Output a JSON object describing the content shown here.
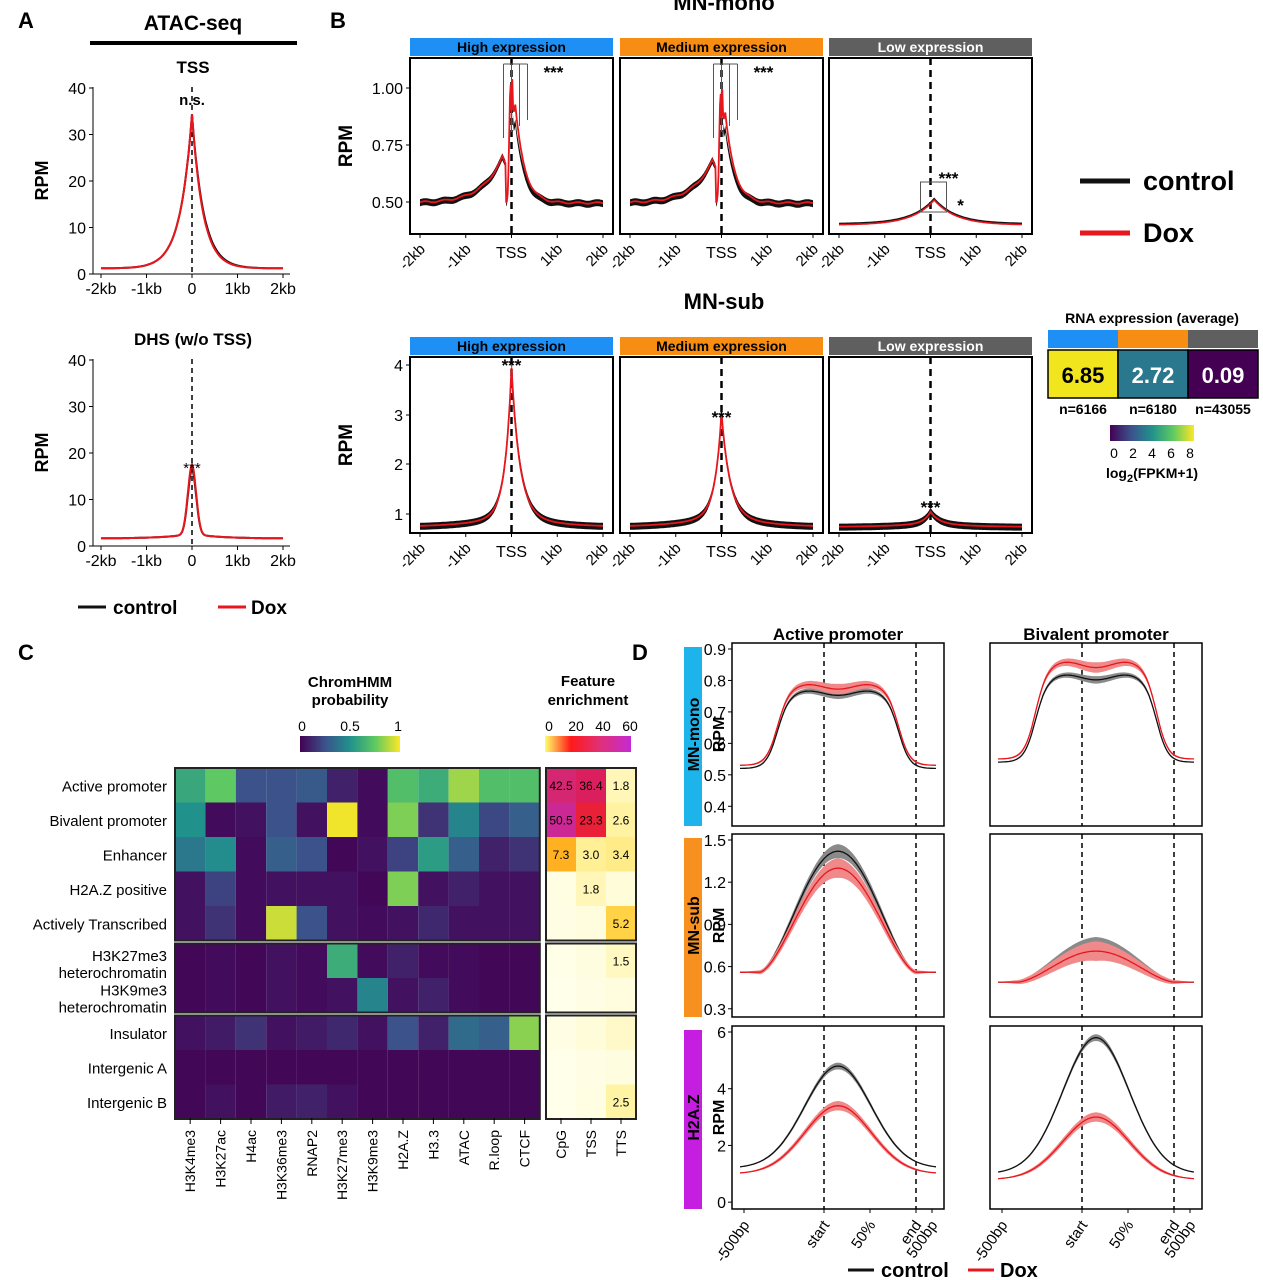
{
  "panel_labels": {
    "a": "A",
    "b": "B",
    "c": "C",
    "d": "D"
  },
  "legend": {
    "control": "control",
    "dox": "Dox"
  },
  "colors": {
    "control": "#111111",
    "dox": "#e8161d",
    "dox_ribbon": "#f08a8a",
    "control_ribbon": "#8a8a8a",
    "high": "#1e90f5",
    "medium": "#f78d12",
    "low": "#5f5f5f",
    "mn_mono": "#1cb4ea",
    "mn_sub": "#f7901e",
    "h2az": "#c61ee0"
  },
  "panel_a": {
    "title": "ATAC-seq",
    "ylabel": "RPM",
    "plots": [
      {
        "title": "TSS",
        "annotation": "n.s."
      },
      {
        "title": "DHS (w/o TSS)",
        "annotation": "***"
      }
    ]
  },
  "panel_b": {
    "ylabel": "RPM",
    "legend": {
      "control": "control",
      "dox": "Dox"
    },
    "groups": [
      {
        "title": "MN-mono",
        "strips": [
          "High expression",
          "Medium expression",
          "Low expression"
        ],
        "annotations": [
          "***",
          "***",
          "***",
          "*"
        ]
      },
      {
        "title": "MN-sub",
        "strips": [
          "High expression",
          "Medium expression",
          "Low expression"
        ],
        "annotations": [
          "***",
          "***",
          "***"
        ]
      }
    ],
    "rna": {
      "title": "RNA expression (average)",
      "cells": [
        {
          "value": "6.85",
          "n": "n=6166"
        },
        {
          "value": "2.72",
          "n": "n=6180"
        },
        {
          "value": "0.09",
          "n": "n=43055"
        }
      ],
      "scale_ticks": [
        "0",
        "2",
        "4",
        "6",
        "8"
      ],
      "scale_label": "log",
      "scale_label_sub": "2",
      "scale_label_tail": "(FPKM+1)"
    }
  },
  "panel_c": {
    "chromhmm_title_1": "ChromHMM",
    "chromhmm_title_2": "probability",
    "chromhmm_ticks": [
      "0",
      "0.5",
      "1"
    ],
    "feature_title_1": "Feature",
    "feature_title_2": "enrichment",
    "feature_ticks": [
      "0",
      "20",
      "40",
      "60"
    ],
    "states": [
      [
        "Active promoter"
      ],
      [
        "Bivalent promoter"
      ],
      [
        "Enhancer"
      ],
      [
        "H2A.Z positive"
      ],
      [
        "Actively Transcribed"
      ],
      [
        "H3K27me3",
        "heterochromatin"
      ],
      [
        "H3K9me3",
        "heterochromatin"
      ],
      [
        "Insulator"
      ],
      [
        "Intergenic A"
      ],
      [
        "Intergenic B"
      ]
    ],
    "marks": [
      "H3K4me3",
      "H3K27ac",
      "H4ac",
      "H3K36me3",
      "RNAP2",
      "H3K27me3",
      "H3K9me3",
      "H2A.Z",
      "H3.3",
      "ATAC",
      "R.loop",
      "CTCF"
    ],
    "features": [
      "CpG",
      "TSS",
      "TTS"
    ],
    "feature_labels": [
      [
        "42.5",
        "36.4",
        "1.8"
      ],
      [
        "50.5",
        "23.3",
        "2.6"
      ],
      [
        "7.3",
        "3.0",
        "3.4"
      ],
      [
        "",
        "1.8",
        ""
      ],
      [
        "",
        "",
        "5.2"
      ],
      [
        "",
        "",
        "1.5"
      ],
      [
        "",
        "",
        ""
      ],
      [
        "",
        "",
        ""
      ],
      [
        "",
        "",
        ""
      ],
      [
        "",
        "",
        "2.5"
      ]
    ]
  },
  "panel_d": {
    "columns": [
      "Active promoter",
      "Bivalent promoter"
    ],
    "rows": [
      "MN-mono",
      "MN-sub",
      "H2A.Z"
    ],
    "ylabel": "RPM",
    "xticks": [
      "-500bp",
      "start",
      "50%",
      "end",
      "500bp"
    ],
    "yticks": [
      [
        "0.9",
        "0.8",
        "0.7",
        "0.6",
        "0.5",
        "0.4"
      ],
      [
        "1.5",
        "1.2",
        "0.9",
        "0.6",
        "0.3"
      ],
      [
        "6",
        "4",
        "2",
        "0"
      ]
    ],
    "legend": {
      "control": "control",
      "dox": "Dox"
    }
  },
  "axis_labels": {
    "tss_ticks_a": [
      "-2kb",
      "-1kb",
      "0",
      "1kb",
      "2kb"
    ],
    "tss_ticks_b": [
      "-2kb",
      "-1kb",
      "TSS",
      "1kb",
      "2kb"
    ],
    "a_yticks": [
      "40",
      "30",
      "20",
      "10",
      "0"
    ],
    "b_yticks_mono": [
      "1.00",
      "0.75",
      "0.50"
    ],
    "b_yticks_sub": [
      "4",
      "3",
      "2",
      "1"
    ]
  },
  "chart_data": [
    {
      "type": "line",
      "panel": "A",
      "title": "TSS",
      "ylabel": "RPM",
      "xlim": [
        "-2kb",
        "2kb"
      ],
      "ylim": [
        0,
        40
      ],
      "x": [
        -2000,
        -1000,
        -500,
        -200,
        0,
        200,
        500,
        1000,
        2000
      ],
      "series": [
        {
          "name": "control",
          "values": [
            1.5,
            3,
            8,
            20,
            34,
            18,
            7,
            3,
            1.5
          ]
        },
        {
          "name": "Dox",
          "values": [
            1.5,
            3,
            8,
            20,
            34,
            17,
            6.5,
            3,
            1.5
          ]
        }
      ]
    },
    {
      "type": "line",
      "panel": "A",
      "title": "DHS (w/o TSS)",
      "ylabel": "RPM",
      "xlim": [
        "-2kb",
        "2kb"
      ],
      "ylim": [
        0,
        40
      ],
      "x": [
        -2000,
        -1000,
        -300,
        -100,
        0,
        100,
        300,
        1000,
        2000
      ],
      "series": [
        {
          "name": "control",
          "values": [
            1.5,
            1.8,
            2.5,
            9,
            15.5,
            9,
            2.5,
            1.8,
            1.5
          ]
        },
        {
          "name": "Dox",
          "values": [
            1.5,
            1.8,
            2.5,
            9,
            16.5,
            9,
            2.5,
            1.8,
            1.5
          ]
        }
      ]
    },
    {
      "type": "line",
      "panel": "B",
      "title": "MN-mono",
      "ylabel": "RPM",
      "ylim": [
        0.3,
        1.15
      ],
      "facets": [
        "High expression",
        "Medium expression",
        "Low expression"
      ],
      "series": [
        {
          "name": "control",
          "peaks": [
            0.95,
            0.88,
            0.56
          ]
        },
        {
          "name": "Dox",
          "peaks": [
            1.07,
            1.0,
            0.55
          ]
        }
      ]
    },
    {
      "type": "line",
      "panel": "B",
      "title": "MN-sub",
      "ylabel": "RPM",
      "ylim": [
        0.5,
        4.2
      ],
      "facets": [
        "High expression",
        "Medium expression",
        "Low expression"
      ],
      "series": [
        {
          "name": "control",
          "peaks": [
            4.0,
            2.7,
            0.72
          ]
        },
        {
          "name": "Dox",
          "peaks": [
            3.8,
            2.6,
            0.7
          ]
        }
      ]
    },
    {
      "type": "heatmap",
      "panel": "C",
      "title": "ChromHMM probability",
      "range": [
        0,
        1
      ],
      "rows": [
        "Active promoter",
        "Bivalent promoter",
        "Enhancer",
        "H2A.Z positive",
        "Actively Transcribed",
        "H3K27me3 heterochromatin",
        "H3K9me3 heterochromatin",
        "Insulator",
        "Intergenic A",
        "Intergenic B"
      ],
      "columns": [
        "H3K4me3",
        "H3K27ac",
        "H4ac",
        "H3K36me3",
        "RNAP2",
        "H3K27me3",
        "H3K9me3",
        "H2A.Z",
        "H3.3",
        "ATAC",
        "R.loop",
        "CTCF"
      ],
      "values": [
        [
          0.6,
          0.75,
          0.25,
          0.25,
          0.28,
          0.1,
          0.03,
          0.7,
          0.62,
          0.85,
          0.7,
          0.7
        ],
        [
          0.5,
          0.03,
          0.05,
          0.25,
          0.05,
          0.98,
          0.03,
          0.8,
          0.15,
          0.45,
          0.22,
          0.3
        ],
        [
          0.4,
          0.48,
          0.03,
          0.3,
          0.25,
          0.02,
          0.05,
          0.2,
          0.55,
          0.3,
          0.1,
          0.15
        ],
        [
          0.05,
          0.2,
          0.03,
          0.05,
          0.05,
          0.05,
          0.02,
          0.8,
          0.05,
          0.1,
          0.05,
          0.05
        ],
        [
          0.05,
          0.15,
          0.03,
          0.92,
          0.25,
          0.05,
          0.03,
          0.05,
          0.12,
          0.05,
          0.05,
          0.05
        ],
        [
          0.02,
          0.03,
          0.02,
          0.05,
          0.03,
          0.62,
          0.03,
          0.1,
          0.03,
          0.03,
          0.02,
          0.02
        ],
        [
          0.02,
          0.03,
          0.02,
          0.05,
          0.03,
          0.05,
          0.45,
          0.05,
          0.1,
          0.03,
          0.02,
          0.02
        ],
        [
          0.05,
          0.08,
          0.15,
          0.05,
          0.08,
          0.12,
          0.05,
          0.25,
          0.1,
          0.35,
          0.3,
          0.82
        ],
        [
          0.02,
          0.02,
          0.02,
          0.02,
          0.02,
          0.02,
          0.02,
          0.02,
          0.02,
          0.02,
          0.02,
          0.02
        ],
        [
          0.02,
          0.05,
          0.02,
          0.08,
          0.1,
          0.05,
          0.02,
          0.02,
          0.02,
          0.02,
          0.02,
          0.02
        ]
      ]
    },
    {
      "type": "heatmap",
      "panel": "C",
      "title": "Feature enrichment",
      "range": [
        0,
        60
      ],
      "columns": [
        "CpG",
        "TSS",
        "TTS"
      ],
      "values": [
        [
          42.5,
          36.4,
          1.8
        ],
        [
          50.5,
          23.3,
          2.6
        ],
        [
          7.3,
          3.0,
          3.4
        ],
        [
          0.3,
          1.8,
          0.6
        ],
        [
          0.2,
          0.5,
          5.2
        ],
        [
          0.1,
          0.4,
          1.5
        ],
        [
          0.05,
          0.2,
          0.5
        ],
        [
          0.2,
          0.6,
          1.2
        ],
        [
          0.05,
          0.2,
          0.4
        ],
        [
          0.05,
          0.3,
          2.5
        ]
      ]
    },
    {
      "type": "line",
      "panel": "D",
      "ylabel": "RPM",
      "x": [
        "-500bp",
        "start",
        "50%",
        "end",
        "500bp"
      ],
      "facets": [
        {
          "row": "MN-mono",
          "column": "Active promoter",
          "ylim": [
            0.35,
            0.9
          ],
          "series": [
            {
              "name": "control",
              "values": [
                0.52,
                0.6,
                0.76,
                0.6,
                0.52
              ]
            },
            {
              "name": "Dox",
              "values": [
                0.53,
                0.61,
                0.78,
                0.61,
                0.53
              ]
            }
          ]
        },
        {
          "row": "MN-mono",
          "column": "Bivalent promoter",
          "ylim": [
            0.35,
            0.9
          ],
          "series": [
            {
              "name": "control",
              "values": [
                0.54,
                0.62,
                0.81,
                0.62,
                0.54
              ]
            },
            {
              "name": "Dox",
              "values": [
                0.55,
                0.64,
                0.85,
                0.64,
                0.55
              ]
            }
          ]
        },
        {
          "row": "MN-sub",
          "column": "Active promoter",
          "ylim": [
            0.3,
            1.5
          ],
          "series": [
            {
              "name": "control",
              "values": [
                0.56,
                0.7,
                1.42,
                0.7,
                0.56
              ]
            },
            {
              "name": "Dox",
              "values": [
                0.56,
                0.7,
                1.3,
                0.7,
                0.56
              ]
            }
          ]
        },
        {
          "row": "MN-sub",
          "column": "Bivalent promoter",
          "ylim": [
            0.3,
            1.5
          ],
          "series": [
            {
              "name": "control",
              "values": [
                0.49,
                0.55,
                0.76,
                0.55,
                0.49
              ]
            },
            {
              "name": "Dox",
              "values": [
                0.49,
                0.55,
                0.71,
                0.55,
                0.49
              ]
            }
          ]
        },
        {
          "row": "H2A.Z",
          "column": "Active promoter",
          "ylim": [
            0,
            6
          ],
          "series": [
            {
              "name": "control",
              "values": [
                1.2,
                2.2,
                4.8,
                2.2,
                1.2
              ]
            },
            {
              "name": "Dox",
              "values": [
                1.0,
                1.8,
                3.4,
                1.8,
                1.0
              ]
            }
          ]
        },
        {
          "row": "H2A.Z",
          "column": "Bivalent promoter",
          "ylim": [
            0,
            6
          ],
          "series": [
            {
              "name": "control",
              "values": [
                1.0,
                1.8,
                5.8,
                1.8,
                1.0
              ]
            },
            {
              "name": "Dox",
              "values": [
                0.8,
                1.3,
                3.0,
                1.3,
                0.8
              ]
            }
          ]
        }
      ]
    }
  ]
}
